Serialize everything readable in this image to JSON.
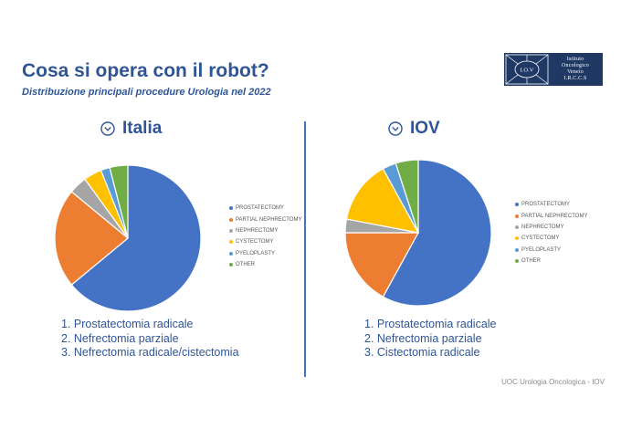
{
  "slide": {
    "title": "Cosa si opera con il robot?",
    "subtitle": "Distribuzione principali procedure Urologia nel 2022",
    "footer": "UOC Urologia Oncologica  - IOV"
  },
  "logo": {
    "mark_text": "I.O.V",
    "lines": [
      "Istituto",
      "Oncologico",
      "Veneto",
      "I.R.C.C.S"
    ]
  },
  "colors": {
    "title": "#2f5597",
    "divider": "#4472c4"
  },
  "chart_data": [
    {
      "type": "pie",
      "title": "Italia",
      "categories": [
        "PROSTATECTOMY",
        "PARTIAL NEPHRECTOMY",
        "NEPHRECTOMY",
        "CYSTECTOMY",
        "PYELOPLASTY",
        "OTHER"
      ],
      "values": [
        64,
        22,
        4,
        4,
        2,
        4
      ],
      "colors": [
        "#4472c4",
        "#ed7d31",
        "#a5a5a5",
        "#ffc000",
        "#5b9bd5",
        "#70ad47"
      ],
      "legend_position": "right",
      "ranking": [
        "1. Prostatectomia radicale",
        "2. Nefrectomia parziale",
        "3. Nefrectomia radicale/cistectomia"
      ]
    },
    {
      "type": "pie",
      "title": "IOV",
      "categories": [
        "PROSTATECTOMY",
        "PARTIAL NEPHRECTOMY",
        "NEPHRECTOMY",
        "CYSTECTOMY",
        "PYELOPLASTY",
        "OTHER"
      ],
      "values": [
        58,
        17,
        3,
        14,
        3,
        5
      ],
      "colors": [
        "#4472c4",
        "#ed7d31",
        "#a5a5a5",
        "#ffc000",
        "#5b9bd5",
        "#70ad47"
      ],
      "legend_position": "right",
      "ranking": [
        "1. Prostatectomia radicale",
        "2. Nefrectomia parziale",
        "3. Cistectomia radicale"
      ]
    }
  ]
}
